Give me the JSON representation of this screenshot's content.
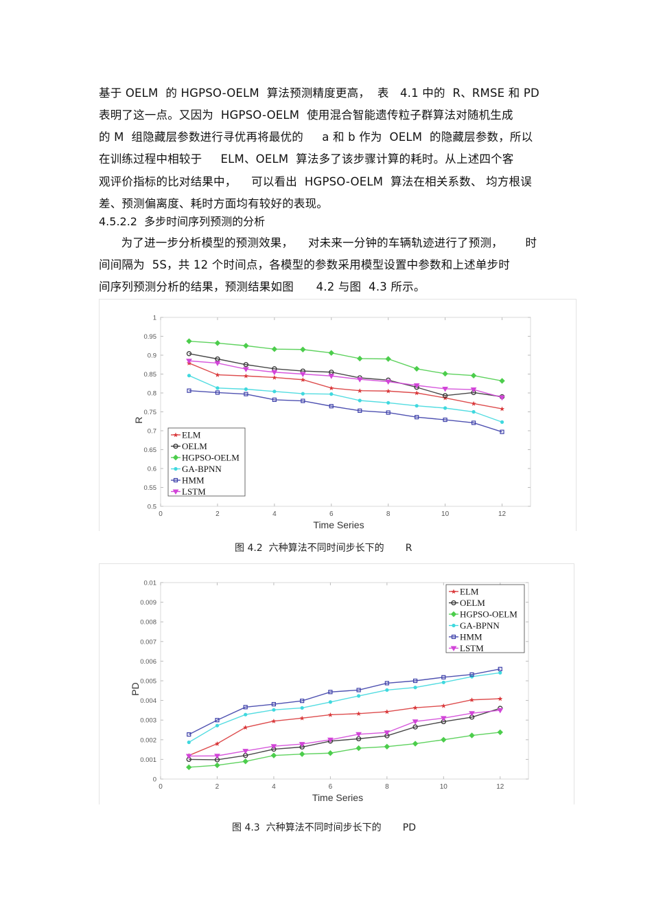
{
  "paragraph1": {
    "lines": [
      "基于 OELM  的 HGPSO-OELM  算法预测精度更高，  表   4.1 中的  R、RMSE 和 PD",
      "表明了这一点。又因为  HGPSO-OELM  使用混合智能遗传粒子群算法对随机生成",
      "的 M  组隐藏层参数进行寻优再将最优的     a 和 b 作为  OELM  的隐藏层参数，所以",
      "在训练过程中相较于     ELM、OELM  算法多了该步骤计算的耗时。从上述四个客",
      "观评价指标的比对结果中，    可以看出  HGPSO-OELM  算法在相关系数、 均方根误",
      "差、预测偏离度、耗时方面均有较好的表现。"
    ]
  },
  "section_heading": "4.5.2.2  多步时间序列预测的分析",
  "paragraph2": {
    "lines": [
      "      为了进一步分析模型的预测效果，    对未来一分钟的车辆轨迹进行了预测，      时",
      "间间隔为  5S，共 12 个时间点，各模型的参数采用模型设置中参数和上述单步时",
      "间序列预测分析的结果，预测结果如图      4.2 与图  4.3 所示。"
    ]
  },
  "figure1": {
    "caption": "图 4.2  六种算法不同时间步长下的       R"
  },
  "figure2": {
    "caption": "图 4.3  六种算法不同时间步长下的       PD"
  },
  "chart_data": [
    {
      "type": "line",
      "title": "",
      "xlabel": "Time Series",
      "ylabel": "R",
      "xlim": [
        0,
        13
      ],
      "ylim": [
        0.5,
        1
      ],
      "xticks": [
        "0",
        "2",
        "4",
        "6",
        "8",
        "10",
        "12"
      ],
      "yticks": [
        "0.5",
        "0.55",
        "0.6",
        "0.65",
        "0.7",
        "0.75",
        "0.8",
        "0.85",
        "0.9",
        "0.95",
        "1"
      ],
      "grid": false,
      "legend_position": "lower left",
      "x": [
        1,
        2,
        3,
        4,
        5,
        6,
        7,
        8,
        9,
        10,
        11,
        12
      ],
      "series": [
        {
          "name": "ELM",
          "color": "#d9383a",
          "marker": "star",
          "values": [
            0.879,
            0.848,
            0.845,
            0.841,
            0.835,
            0.813,
            0.806,
            0.805,
            0.8,
            0.787,
            0.772,
            0.758
          ]
        },
        {
          "name": "OELM",
          "color": "#333333",
          "marker": "circle",
          "values": [
            0.904,
            0.89,
            0.875,
            0.864,
            0.858,
            0.855,
            0.84,
            0.834,
            0.815,
            0.793,
            0.801,
            0.79
          ]
        },
        {
          "name": "HGPSO-OELM",
          "color": "#4ccd4c",
          "marker": "diamond",
          "values": [
            0.937,
            0.932,
            0.925,
            0.916,
            0.915,
            0.906,
            0.891,
            0.89,
            0.864,
            0.851,
            0.846,
            0.832
          ]
        },
        {
          "name": "GA-BPNN",
          "color": "#3fd8de",
          "marker": "asterisk",
          "values": [
            0.846,
            0.813,
            0.81,
            0.804,
            0.798,
            0.797,
            0.78,
            0.774,
            0.766,
            0.76,
            0.75,
            0.723
          ]
        },
        {
          "name": "HMM",
          "color": "#3b3ea8",
          "marker": "square",
          "values": [
            0.806,
            0.801,
            0.797,
            0.782,
            0.779,
            0.765,
            0.753,
            0.748,
            0.736,
            0.729,
            0.721,
            0.697
          ]
        },
        {
          "name": "LSTM",
          "color": "#d245d8",
          "marker": "triangle-down",
          "values": [
            0.885,
            0.879,
            0.863,
            0.855,
            0.85,
            0.845,
            0.836,
            0.83,
            0.82,
            0.811,
            0.809,
            0.788
          ]
        }
      ]
    },
    {
      "type": "line",
      "title": "",
      "xlabel": "Time Series",
      "ylabel": "PD",
      "xlim": [
        0,
        13
      ],
      "ylim": [
        0,
        0.01
      ],
      "xticks": [
        "0",
        "2",
        "4",
        "6",
        "8",
        "10",
        "12"
      ],
      "yticks": [
        "0",
        "0.001",
        "0.002",
        "0.003",
        "0.004",
        "0.005",
        "0.006",
        "0.007",
        "0.008",
        "0.009",
        "0.01"
      ],
      "grid": false,
      "legend_position": "upper right",
      "x": [
        1,
        2,
        3,
        4,
        5,
        6,
        7,
        8,
        9,
        10,
        11,
        12
      ],
      "series": [
        {
          "name": "ELM",
          "color": "#d9383a",
          "marker": "star",
          "values": [
            0.0012,
            0.0018,
            0.00263,
            0.00295,
            0.0031,
            0.00327,
            0.00333,
            0.00343,
            0.00363,
            0.00373,
            0.00403,
            0.00409
          ]
        },
        {
          "name": "OELM",
          "color": "#333333",
          "marker": "circle",
          "values": [
            0.001,
            0.00098,
            0.0012,
            0.00152,
            0.00163,
            0.00193,
            0.00205,
            0.0022,
            0.00265,
            0.00292,
            0.00315,
            0.0036
          ]
        },
        {
          "name": "HGPSO-OELM",
          "color": "#4ccd4c",
          "marker": "diamond",
          "values": [
            0.0006,
            0.0007,
            0.0009,
            0.0012,
            0.00127,
            0.00132,
            0.00157,
            0.00165,
            0.0018,
            0.002,
            0.00222,
            0.00238
          ]
        },
        {
          "name": "GA-BPNN",
          "color": "#3fd8de",
          "marker": "asterisk",
          "values": [
            0.00187,
            0.00272,
            0.00328,
            0.00352,
            0.00362,
            0.00392,
            0.00423,
            0.00453,
            0.00466,
            0.00492,
            0.00521,
            0.00541
          ]
        },
        {
          "name": "HMM",
          "color": "#3b3ea8",
          "marker": "square",
          "values": [
            0.00227,
            0.003,
            0.00366,
            0.00381,
            0.00398,
            0.00443,
            0.00453,
            0.00488,
            0.005,
            0.00518,
            0.00532,
            0.0056
          ]
        },
        {
          "name": "LSTM",
          "color": "#d245d8",
          "marker": "triangle-down",
          "values": [
            0.00117,
            0.00118,
            0.00143,
            0.00167,
            0.00178,
            0.002,
            0.00228,
            0.00237,
            0.00293,
            0.0031,
            0.00335,
            0.0035
          ]
        }
      ]
    }
  ]
}
